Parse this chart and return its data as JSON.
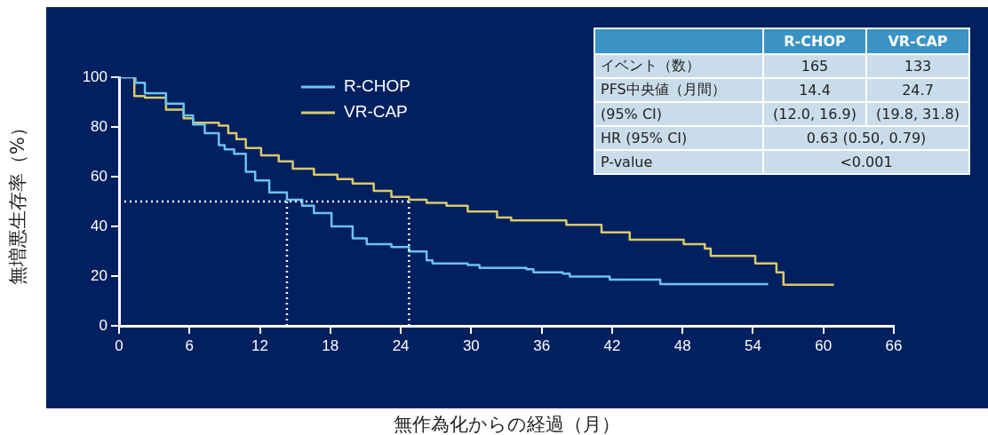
{
  "chart_data": [
    {
      "type": "step",
      "xlabel": "無作為化からの経過（月）",
      "ylabel": "無増悪生存率（%）",
      "xlim": [
        0,
        66
      ],
      "xticks": [
        0,
        6,
        12,
        18,
        24,
        30,
        36,
        42,
        48,
        54,
        60,
        66
      ],
      "ylim": [
        0,
        100
      ],
      "yticks": [
        0,
        20,
        40,
        60,
        80,
        100
      ],
      "grid": false,
      "legend": "top left",
      "marker": "none",
      "line_style": "solid",
      "series": [
        {
          "name": "R-CHOP",
          "color": "#6ec1f0",
          "x": [
            0,
            1.4,
            2.2,
            4,
            5.5,
            6.3,
            7.3,
            8.5,
            9,
            9.8,
            10.8,
            11.6,
            12.8,
            14.3,
            15.6,
            16.6,
            18.1,
            19.9,
            21.1,
            23.2,
            24.7,
            26.2,
            26.7,
            29.7,
            30.7,
            34.7,
            35.3,
            37.8,
            38.4,
            41.8,
            46.1,
            55.3
          ],
          "values": [
            100,
            97.8,
            93.6,
            89.4,
            84.6,
            81,
            77.5,
            72.7,
            71,
            69.2,
            62,
            58.5,
            53.7,
            50.7,
            48.3,
            45.4,
            40,
            35.2,
            32.9,
            31.7,
            29.9,
            26.3,
            25.1,
            24.5,
            23.3,
            22.8,
            21.5,
            21,
            19.8,
            18.6,
            16.8,
            16.8
          ]
        },
        {
          "name": "VR-CAP",
          "color": "#d9c96a",
          "x": [
            0,
            1.3,
            2.2,
            4,
            5.5,
            6.3,
            8.5,
            9.3,
            10,
            10.8,
            12.1,
            13.6,
            14.8,
            16.6,
            18.6,
            19.9,
            21.7,
            23.2,
            24.7,
            26.2,
            27.9,
            29.7,
            32.2,
            33.4,
            38.1,
            41.1,
            43.5,
            48.1,
            49.9,
            50.4,
            54.2,
            56,
            56.6,
            60.9
          ],
          "values": [
            100,
            92.4,
            91.8,
            87,
            83.5,
            81.7,
            80.5,
            77.5,
            75.1,
            71.5,
            68.6,
            66.2,
            63.2,
            60.8,
            59,
            57.2,
            54.3,
            51.9,
            50.7,
            49.5,
            48.3,
            46,
            43.6,
            42.4,
            40.6,
            37.6,
            34.6,
            32.9,
            31.1,
            28.1,
            25.1,
            21.5,
            16.5,
            16.5
          ]
        }
      ],
      "ref_lines": [
        {
          "axis": "y",
          "value": 50,
          "color": "#ffffff",
          "line_style": "dotted"
        },
        {
          "axis": "x",
          "value": 14.3,
          "color": "#ffffff",
          "line_style": "dotted"
        },
        {
          "axis": "x",
          "value": 24.7,
          "color": "#ffffff",
          "line_style": "dotted"
        }
      ]
    },
    {
      "type": "other",
      "annotations": [
        "R-CHOP",
        "VR-CAP",
        "イベント（数）",
        "165",
        "133",
        "PFS中央値（月間）",
        "14.4",
        "24.7",
        "(95% CI)",
        "(12.0, 16.9)",
        "(19.8, 31.8)",
        "HR (95% CI)",
        "0.63 (0.50, 0.79)",
        "P-value",
        "<0.001"
      ]
    }
  ]
}
